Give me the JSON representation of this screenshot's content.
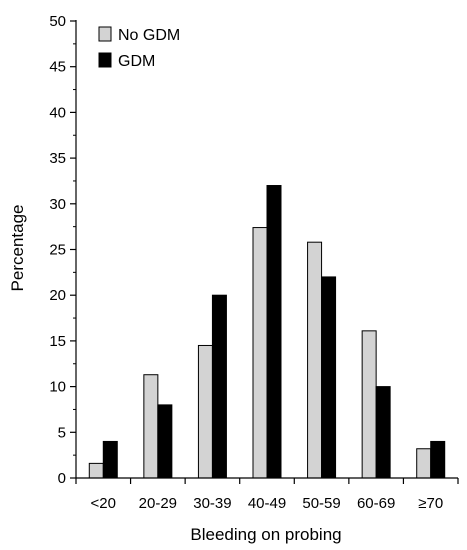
{
  "chart_data": {
    "type": "bar",
    "title": "",
    "xlabel": "Bleeding on probing",
    "ylabel": "Percentage",
    "categories": [
      "<20",
      "20-29",
      "30-39",
      "40-49",
      "50-59",
      "60-69",
      "≥70"
    ],
    "series": [
      {
        "name": "No GDM",
        "color": "#d3d3d3",
        "values": [
          1.6,
          11.3,
          14.5,
          27.4,
          25.8,
          16.1,
          3.2
        ]
      },
      {
        "name": "GDM",
        "color": "#000000",
        "values": [
          4,
          8,
          20,
          32,
          22,
          10,
          4
        ]
      }
    ],
    "ylim": [
      0,
      50
    ],
    "yticks": [
      0,
      5,
      10,
      15,
      20,
      25,
      30,
      35,
      40,
      45,
      50
    ],
    "grid": false,
    "legend_position": "top-left"
  }
}
